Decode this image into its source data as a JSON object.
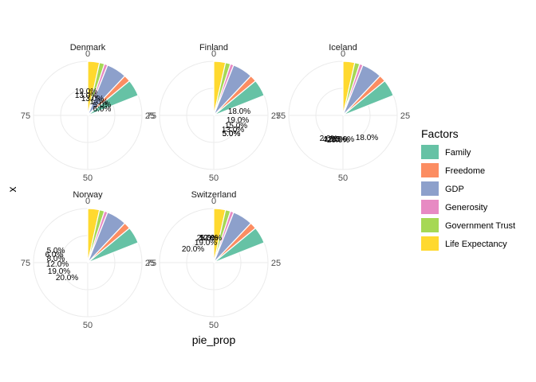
{
  "chart_data": {
    "type": "pie",
    "coord": "polar",
    "xlabel": "pie_prop",
    "ylabel": "x",
    "theta_ticks": [
      0,
      25,
      50,
      75
    ],
    "theta_max": 100,
    "legend": {
      "title": "Factors",
      "placement": "right",
      "entries": [
        "Family",
        "Freedome",
        "GDP",
        "Generosity",
        "Government Trust",
        "Life Expectancy"
      ],
      "colors": {
        "Family": "#66C2A5",
        "Freedome": "#FC8D62",
        "GDP": "#8DA0CB",
        "Generosity": "#E78AC3",
        "Government Trust": "#A6D854",
        "Life Expectancy": "#FFD92F"
      }
    },
    "panels": [
      {
        "name": "Denmark",
        "slices": [
          {
            "factor": "Family",
            "value": 5.0
          },
          {
            "factor": "Freedome",
            "value": 2.0
          },
          {
            "factor": "GDP",
            "value": 6.0
          },
          {
            "factor": "Generosity",
            "value": 1.0
          },
          {
            "factor": "Government Trust",
            "value": 1.5
          },
          {
            "factor": "Life Expectancy",
            "value": 3.5
          }
        ],
        "labels": [
          "19.0%",
          "13.0%",
          "13.0%",
          "1.0%",
          "5.0%",
          "6.0%"
        ]
      },
      {
        "name": "Finland",
        "slices": [
          {
            "factor": "Family",
            "value": 5.0
          },
          {
            "factor": "Freedome",
            "value": 2.0
          },
          {
            "factor": "GDP",
            "value": 6.0
          },
          {
            "factor": "Generosity",
            "value": 1.0
          },
          {
            "factor": "Government Trust",
            "value": 1.5
          },
          {
            "factor": "Life Expectancy",
            "value": 3.5
          }
        ],
        "labels": [
          "18.0%",
          "19.0%",
          "15.0%",
          "13.0%",
          "5.0%",
          "5.0%"
        ]
      },
      {
        "name": "Iceland",
        "slices": [
          {
            "factor": "Family",
            "value": 5.0
          },
          {
            "factor": "Freedome",
            "value": 2.0
          },
          {
            "factor": "GDP",
            "value": 6.0
          },
          {
            "factor": "Generosity",
            "value": 1.0
          },
          {
            "factor": "Government Trust",
            "value": 1.5
          },
          {
            "factor": "Life Expectancy",
            "value": 3.5
          }
        ],
        "labels": [
          "2.0%",
          "4.0%",
          "12.0%",
          "20.0%",
          "18.0%",
          "15.0%"
        ]
      },
      {
        "name": "Norway",
        "slices": [
          {
            "factor": "Family",
            "value": 5.0
          },
          {
            "factor": "Freedome",
            "value": 2.0
          },
          {
            "factor": "GDP",
            "value": 6.0
          },
          {
            "factor": "Generosity",
            "value": 1.0
          },
          {
            "factor": "Government Trust",
            "value": 1.5
          },
          {
            "factor": "Life Expectancy",
            "value": 3.5
          }
        ],
        "labels": [
          "5.0%",
          "6.0%",
          "8.0%",
          "12.0%",
          "19.0%",
          "20.0%"
        ]
      },
      {
        "name": "Switzerland",
        "slices": [
          {
            "factor": "Family",
            "value": 5.0
          },
          {
            "factor": "Freedome",
            "value": 2.0
          },
          {
            "factor": "GDP",
            "value": 6.0
          },
          {
            "factor": "Generosity",
            "value": 1.0
          },
          {
            "factor": "Government Trust",
            "value": 1.5
          },
          {
            "factor": "Life Expectancy",
            "value": 3.5
          }
        ],
        "labels": [
          "1.0%",
          "2.0%",
          "5.0%",
          "12.0%",
          "19.0%",
          "20.0%"
        ]
      }
    ]
  }
}
